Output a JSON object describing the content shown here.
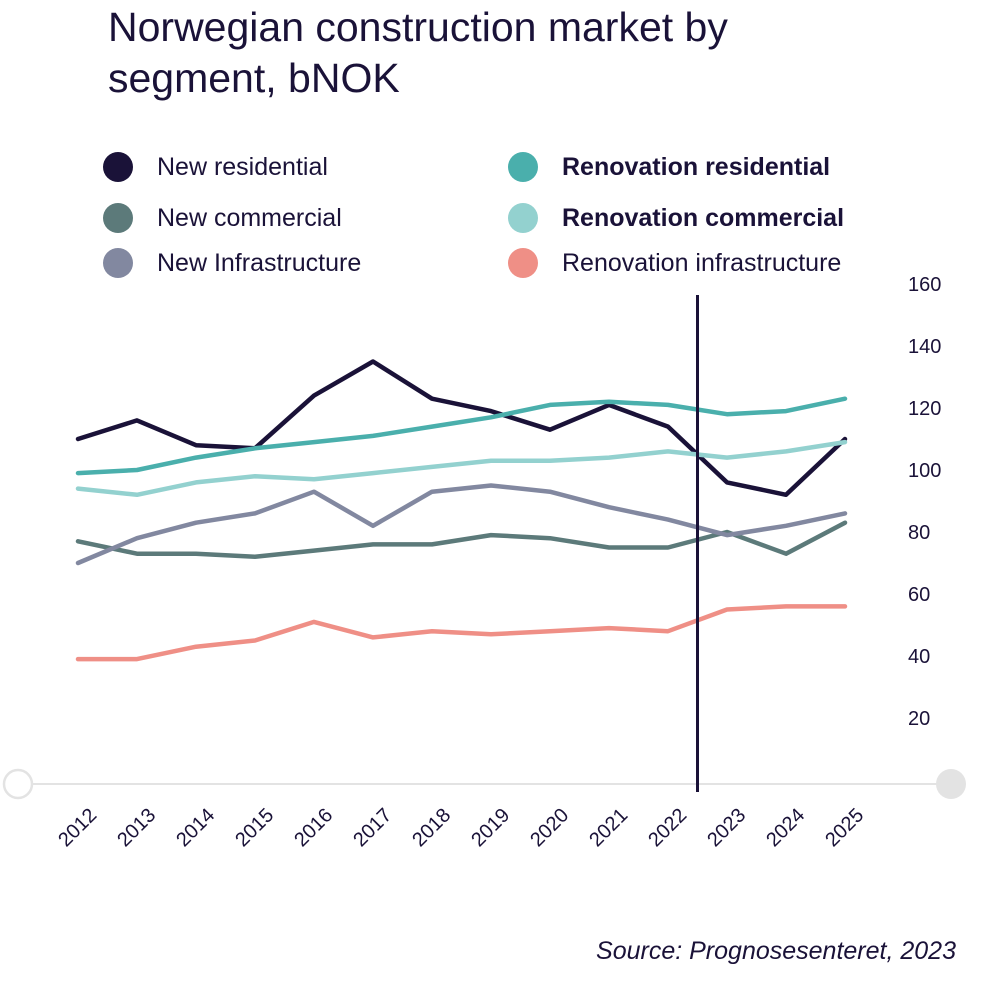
{
  "chart_data": {
    "type": "line",
    "title": "Norwegian construction market by segment, bNOK",
    "x": [
      "2012",
      "2013",
      "2014",
      "2015",
      "2016",
      "2017",
      "2018",
      "2019",
      "2020",
      "2021",
      "2022",
      "2023",
      "2024",
      "2025"
    ],
    "ylim": [
      0,
      160
    ],
    "yticks": [
      20,
      40,
      60,
      80,
      100,
      120,
      140,
      160
    ],
    "grid": false,
    "legend_position": "top",
    "forecast_divider_between": [
      "2022",
      "2023"
    ],
    "series": [
      {
        "name": "New residential",
        "color": "#1a1238",
        "bold": false,
        "values": [
          110,
          116,
          108,
          107,
          124,
          135,
          123,
          119,
          113,
          121,
          114,
          96,
          92,
          110
        ]
      },
      {
        "name": "New commercial",
        "color": "#5c7a7a",
        "bold": false,
        "values": [
          77,
          73,
          73,
          72,
          74,
          76,
          76,
          79,
          78,
          75,
          75,
          80,
          73,
          83
        ]
      },
      {
        "name": "New Infrastructure",
        "color": "#8288a0",
        "bold": false,
        "values": [
          70,
          78,
          83,
          86,
          93,
          82,
          93,
          95,
          93,
          88,
          84,
          79,
          82,
          86
        ]
      },
      {
        "name": "Renovation residential",
        "color": "#4aafac",
        "bold": true,
        "values": [
          99,
          100,
          104,
          107,
          109,
          111,
          114,
          117,
          121,
          122,
          121,
          118,
          119,
          123
        ]
      },
      {
        "name": "Renovation commercial",
        "color": "#93d1cf",
        "bold": true,
        "values": [
          94,
          92,
          96,
          98,
          97,
          99,
          101,
          103,
          103,
          104,
          106,
          104,
          106,
          109
        ]
      },
      {
        "name": "Renovation infrastructure",
        "color": "#ef8f86",
        "bold": false,
        "values": [
          39,
          39,
          43,
          45,
          51,
          46,
          48,
          47,
          48,
          49,
          48,
          55,
          56,
          56
        ]
      }
    ],
    "source": "Source: Prognosesenteret, 2023"
  }
}
